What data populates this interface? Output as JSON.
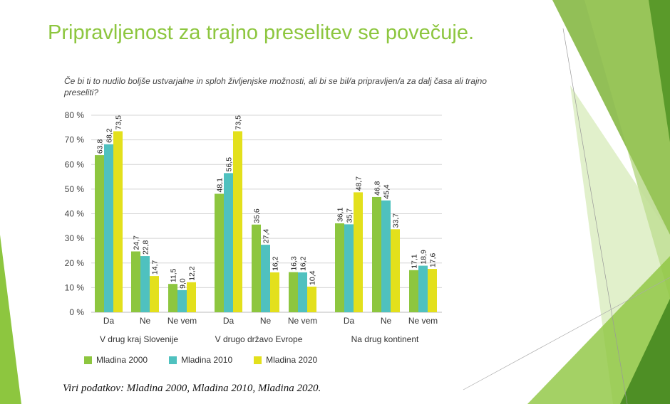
{
  "slide": {
    "title": "Pripravljenost za trajno preselitev se povečuje.",
    "source": "Viri podatkov: Mladina 2000, Mladina 2010, Mladina 2020."
  },
  "colors": {
    "title": "#8dc63f",
    "series": [
      "#8dc63f",
      "#4fc1bf",
      "#e3e01c"
    ]
  },
  "chart_data": {
    "type": "bar",
    "title": "Če bi ti to nudilo boljše ustvarjalne in sploh življenjske možnosti, ali bi se bil/a pripravljen/a za dalj časa ali trajno preseliti?",
    "groups": [
      "V drug kraj Slovenije",
      "V drugo državo Evrope",
      "Na drug kontinent"
    ],
    "categories": [
      "Da",
      "Ne",
      "Ne vem",
      "Da",
      "Ne",
      "Ne vem",
      "Da",
      "Ne",
      "Ne vem"
    ],
    "series": [
      {
        "name": "Mladina 2000",
        "values": [
          63.8,
          24.7,
          11.5,
          48.1,
          35.6,
          16.3,
          36.1,
          46.8,
          17.1
        ]
      },
      {
        "name": "Mladina 2010",
        "values": [
          68.2,
          22.8,
          9.0,
          56.5,
          27.4,
          16.2,
          35.7,
          45.4,
          18.9
        ]
      },
      {
        "name": "Mladina 2020",
        "values": [
          73.5,
          14.7,
          12.2,
          73.5,
          16.2,
          10.4,
          48.7,
          33.7,
          17.6
        ]
      }
    ],
    "ylim": [
      0,
      80
    ],
    "yticks": [
      "0 %",
      "10 %",
      "20 %",
      "30 %",
      "40 %",
      "50 %",
      "60 %",
      "70 %",
      "80 %"
    ],
    "grid": true,
    "legend": "bottom-left"
  }
}
